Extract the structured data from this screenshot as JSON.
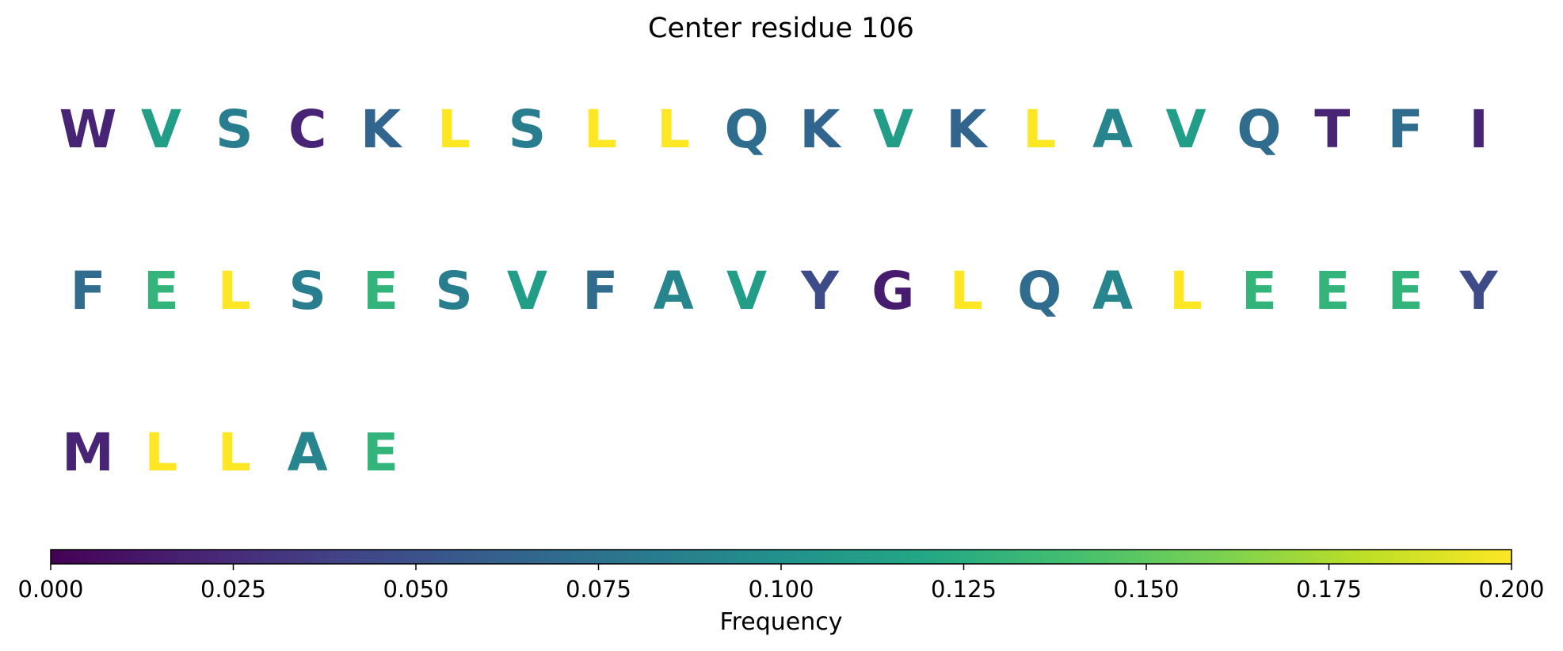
{
  "chart_data": {
    "type": "sequence-colormap",
    "title": "Center residue 106",
    "rows": [
      [
        "W",
        "V",
        "S",
        "C",
        "K",
        "L",
        "S",
        "L",
        "L",
        "Q",
        "K",
        "V",
        "K",
        "L",
        "A",
        "V",
        "Q",
        "T",
        "F",
        "I"
      ],
      [
        "F",
        "E",
        "L",
        "S",
        "E",
        "S",
        "V",
        "F",
        "A",
        "V",
        "Y",
        "G",
        "L",
        "Q",
        "A",
        "L",
        "E",
        "E",
        "E",
        "Y"
      ],
      [
        "M",
        "L",
        "L",
        "A",
        "E"
      ]
    ],
    "residue_frequencies": {
      "A": 0.09,
      "C": 0.02,
      "E": 0.13,
      "F": 0.07,
      "G": 0.015,
      "I": 0.02,
      "K": 0.065,
      "L": 0.2,
      "M": 0.02,
      "Q": 0.07,
      "S": 0.085,
      "T": 0.02,
      "V": 0.11,
      "W": 0.02,
      "Y": 0.045
    },
    "colorbar": {
      "label": "Frequency",
      "range": [
        0.0,
        0.2
      ],
      "ticks": [
        "0.000",
        "0.025",
        "0.050",
        "0.075",
        "0.100",
        "0.125",
        "0.150",
        "0.175",
        "0.200"
      ],
      "colormap": "viridis"
    }
  }
}
